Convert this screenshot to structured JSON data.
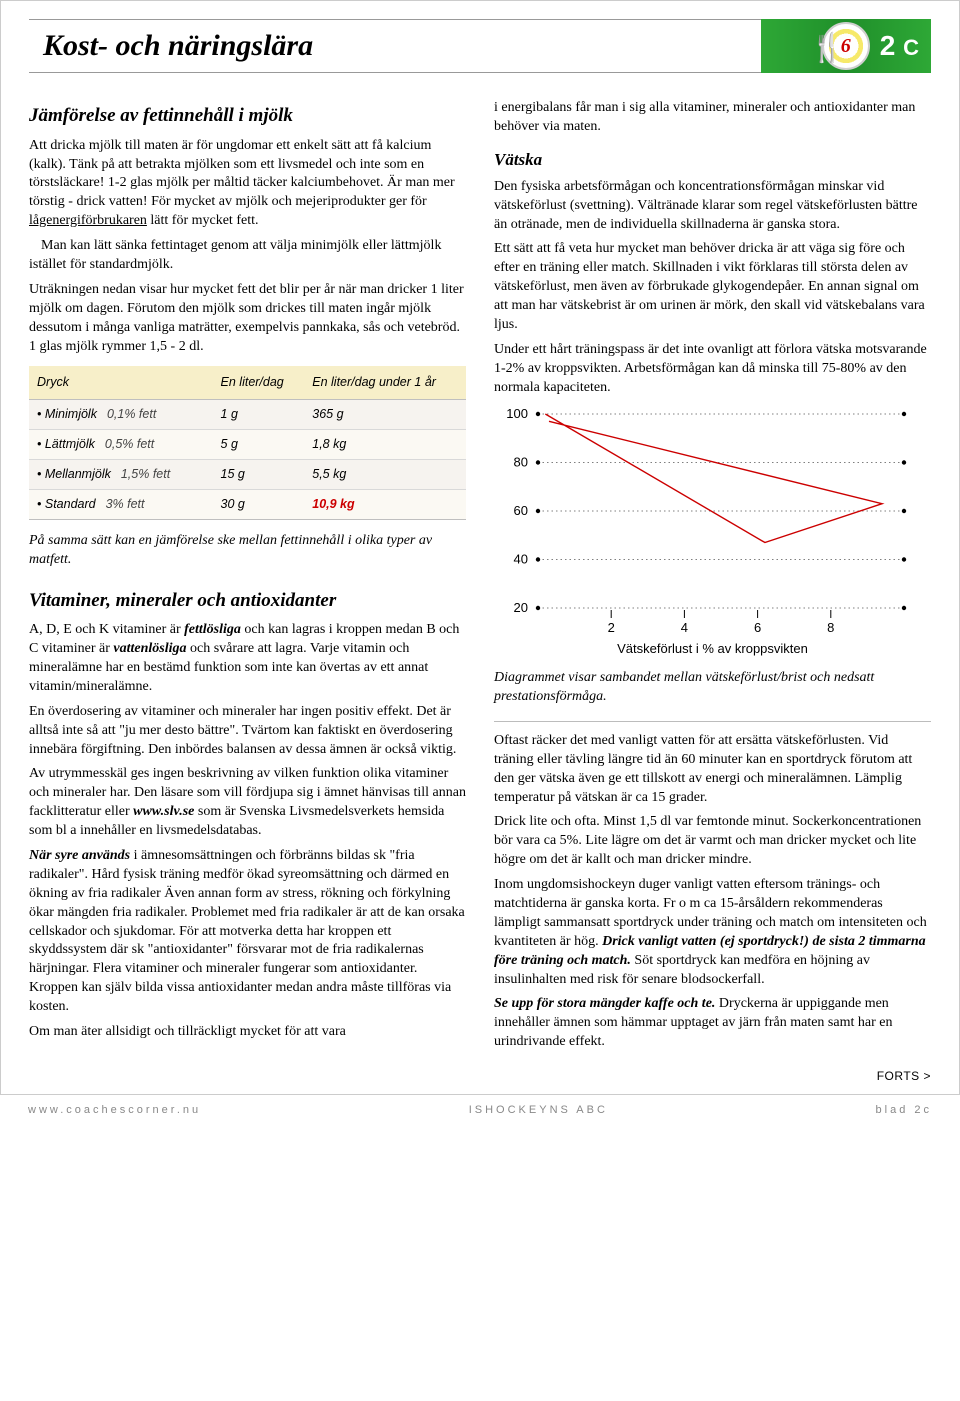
{
  "header": {
    "title": "Kost- och näringslära",
    "plate_number": "6",
    "code": "2",
    "code_suffix": "C"
  },
  "left": {
    "section1_title": "Jämförelse av fettinnehåll i mjölk",
    "p1a": "Att dricka mjölk till maten är för ungdomar ett enkelt sätt att få kalcium (kalk). Tänk på att betrakta mjölken som ett livsmedel och inte som en törstsläckare! 1-2 glas mjölk per måltid täcker kalciumbehovet. Är man mer törstig - drick vatten! För mycket av mjölk och mejeriprodukter ger för ",
    "p1u": "lågenergiförbrukaren",
    "p1b": " lätt för mycket fett.",
    "p2": "Man kan lätt sänka fettintaget genom att välja minimjölk eller lättmjölk istället för standardmjölk.",
    "p3": "Uträkningen nedan visar hur mycket fett det blir per år när man dricker 1 liter mjölk om dagen. Förutom den mjölk som drickes till maten ingår mjölk dessutom i många vanliga maträtter, exempelvis pannkaka, sås och vetebröd. 1 glas mjölk rymmer 1,5 - 2 dl.",
    "table": {
      "headers": [
        "Dryck",
        "En liter/dag",
        "En liter/dag under 1 år"
      ],
      "rows": [
        {
          "name": "Minimjölk",
          "fat": "0,1% fett",
          "perday": "1 g",
          "peryear": "365 g",
          "red": false
        },
        {
          "name": "Lättmjölk",
          "fat": "0,5% fett",
          "perday": "5 g",
          "peryear": "1,8 kg",
          "red": false
        },
        {
          "name": "Mellanmjölk",
          "fat": "1,5% fett",
          "perday": "15 g",
          "peryear": "5,5 kg",
          "red": false
        },
        {
          "name": "Standard",
          "fat": "3% fett",
          "perday": "30 g",
          "peryear": "10,9 kg",
          "red": true
        }
      ]
    },
    "p4": "På samma sätt kan en jämförelse ske mellan fettinnehåll i olika typer av matfett.",
    "section2_title": "Vitaminer, mineraler och antioxidanter",
    "p5a": "A, D, E och K vitaminer är ",
    "p5bi1": "fettlösliga",
    "p5b": " och kan lagras i kroppen medan B och C vitaminer är ",
    "p5bi2": "vattenlösliga",
    "p5c": " och svårare att lagra. Varje vitamin och mineralämne har en bestämd funktion som inte kan övertas av ett annat vitamin/mineralämne.",
    "p6": "En överdosering av vitaminer och mineraler har ingen positiv effekt. Det är alltså inte så att \"ju mer desto bättre\". Tvärtom kan faktiskt en överdosering innebära förgiftning. Den inbördes balansen av dessa ämnen är också viktig.",
    "p7a": "Av utrymmesskäl ges ingen beskrivning av vilken funktion olika vitaminer och mineraler har. Den läsare som vill fördjupa sig i ämnet hänvisas till annan facklitteratur eller ",
    "p7site": "www.slv.se",
    "p7b": " som är Svenska Livsmedelsverkets hemsida som bl a innehåller en livsmedelsdatabas.",
    "p8a_bi": "När syre används",
    "p8a": " i ämnesomsättningen och förbränns bildas sk \"fria radikaler\". Hård fysisk träning medför ökad syreomsättning och därmed en ökning av fria radikaler Även annan form av stress, rökning och förkylning ökar mängden fria radikaler. Problemet med fria radikaler är att de kan orsaka cellskador och sjukdomar. För att motverka detta har kroppen ett skyddssystem där sk \"antioxidanter\" försvarar mot de fria radikalernas härjningar. Flera vitaminer och mineraler fungerar som antioxidanter. Kroppen kan själv bilda vissa antioxidanter medan andra måste tillföras via kosten.",
    "p9": "Om man äter allsidigt och tillräckligt mycket för att vara"
  },
  "right": {
    "p1": "i energibalans får man i sig alla vitaminer, mineraler och antioxidanter man behöver via maten.",
    "section_title": "Vätska",
    "p2": "Den fysiska arbetsförmågan och koncentrationsförmågan minskar vid vätskeförlust (svettning). Vältränade klarar som regel vätskeförlusten bättre än otränade, men de individuella skillnaderna är ganska stora.",
    "p3": "Ett sätt att få veta hur mycket man behöver dricka är att väga sig före och efter en träning eller match. Skillnaden i vikt förklaras till största delen av vätskeförlust, men även av förbrukade glykogendepåer. En annan signal om att man har vätskebrist är om urinen är mörk, den skall vid vätskebalans vara ljus.",
    "p4": "Under ett hårt träningspass är det inte ovanligt att förlora vätska motsvarande 1-2% av kroppsvikten. Arbetsförmågan kan då minska till 75-80% av den normala kapaciteten.",
    "chart": {
      "type": "line",
      "xlim": [
        0,
        10
      ],
      "ylim": [
        20,
        100
      ],
      "xticks": [
        2,
        4,
        6,
        8
      ],
      "yticks": [
        20,
        40,
        60,
        80,
        100
      ],
      "line_color": "#cc0000",
      "grid_color": "#000000",
      "points": [
        {
          "x": 0.2,
          "y": 100
        },
        {
          "x": 6.2,
          "y": 47
        },
        {
          "x": 9.4,
          "y": 63
        },
        {
          "x": 0.3,
          "y": 97
        }
      ],
      "x_label": "Vätskeförlust i % av kroppsvikten"
    },
    "chart_caption": "Diagrammet visar sambandet mellan vätskeförlust/brist och nedsatt prestationsförmåga.",
    "p5": "Oftast räcker det med vanligt vatten för att ersätta vätskeförlusten. Vid träning eller tävling längre tid än 60 minuter kan en sportdryck förutom att den ger vätska även ge ett tillskott av energi och mineralämnen. Lämplig temperatur på vätskan är ca 15 grader.",
    "p5b": "Drick lite och ofta. Minst 1,5 dl var femtonde minut. Sockerkoncentrationen bör vara ca 5%. Lite lägre om det är varmt och man dricker mycket och lite högre om det är kallt och man dricker mindre.",
    "p6a": "Inom ungdomsishockeyn duger vanligt vatten eftersom tränings- och matchtiderna är ganska korta. Fr o m ca 15-årsåldern rekommenderas lämpligt sammansatt sportdryck under träning och match om intensiteten och kvantiteten är hög. ",
    "p6bi": "Drick vanligt vatten (ej sportdryck!) de sista 2 timmarna före träning och match.",
    "p6b": " Söt sportdryck kan medföra en höjning av insulinhalten med risk för senare blodsockerfall.",
    "p7bi": "Se upp för stora mängder kaffe och te.",
    "p7": " Dryckerna är uppiggande men innehåller ämnen som hämmar upptaget av järn från maten samt har en urindrivande effekt.",
    "forts": "FORTS >"
  },
  "footer": {
    "left": "www.coachescorner.nu",
    "center": "ISHOCKEYNS ABC",
    "right": "blad 2c"
  }
}
